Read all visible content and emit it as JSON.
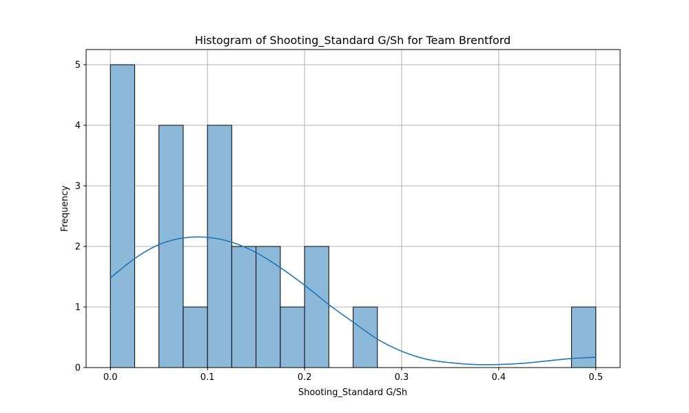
{
  "chart_data": {
    "type": "bar",
    "title": "Histogram of Shooting_Standard G/Sh for Team Brentford",
    "xlabel": "Shooting_Standard G/Sh",
    "ylabel": "Frequency",
    "xlim": [
      -0.025,
      0.525
    ],
    "ylim": [
      0,
      5.25
    ],
    "grid": true,
    "x_ticks": [
      0.0,
      0.1,
      0.2,
      0.3,
      0.4,
      0.5
    ],
    "x_tick_labels": [
      "0.0",
      "0.1",
      "0.2",
      "0.3",
      "0.4",
      "0.5"
    ],
    "y_ticks": [
      0,
      1,
      2,
      3,
      4,
      5
    ],
    "y_tick_labels": [
      "0",
      "1",
      "2",
      "3",
      "4",
      "5"
    ],
    "bin_edges": [
      0.0,
      0.025,
      0.05,
      0.075,
      0.1,
      0.125,
      0.15,
      0.175,
      0.2,
      0.225,
      0.25,
      0.275,
      0.3,
      0.325,
      0.35,
      0.375,
      0.4,
      0.425,
      0.45,
      0.475,
      0.5
    ],
    "counts": [
      5,
      0,
      4,
      1,
      4,
      2,
      2,
      1,
      2,
      0,
      1,
      0,
      0,
      0,
      0,
      0,
      0,
      0,
      0,
      1
    ],
    "kde": {
      "x": [
        0.0,
        0.025,
        0.05,
        0.075,
        0.1,
        0.125,
        0.15,
        0.175,
        0.2,
        0.225,
        0.25,
        0.275,
        0.3,
        0.325,
        0.35,
        0.375,
        0.4,
        0.425,
        0.45,
        0.475,
        0.5
      ],
      "y": [
        1.48,
        1.8,
        2.03,
        2.14,
        2.15,
        2.07,
        1.9,
        1.65,
        1.36,
        1.04,
        0.75,
        0.47,
        0.27,
        0.14,
        0.08,
        0.05,
        0.05,
        0.07,
        0.11,
        0.15,
        0.17
      ]
    },
    "colors": {
      "bar_fill": "#8cb8da",
      "bar_edge": "#000000",
      "kde_line": "#1f77b4",
      "grid": "#b0b0b0"
    }
  }
}
